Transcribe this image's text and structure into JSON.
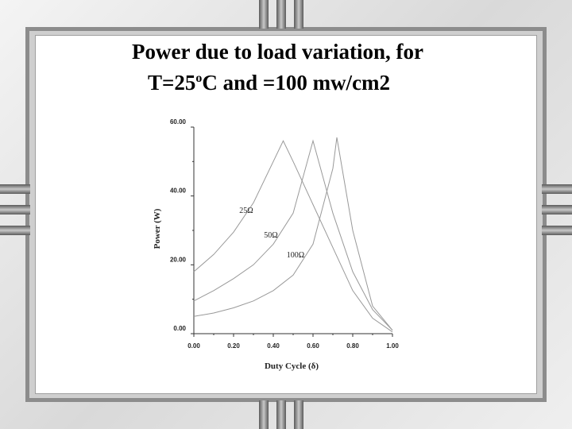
{
  "slide": {
    "title_line1": "Power due to load variation, for",
    "title_line2_pre": "T=25",
    "title_line2_sup": "o",
    "title_line2_post": "C and =100 mw/cm2"
  },
  "colors": {
    "frame": "#8c8c8c",
    "curve": "#999999",
    "axis": "#333333"
  },
  "chart_data": {
    "type": "line",
    "xlabel": "Duty Cycle (δ)",
    "ylabel": "Power (W)",
    "xlim": [
      0,
      1
    ],
    "ylim": [
      0,
      60
    ],
    "xticks": [
      "0.00",
      "0.20",
      "0.40",
      "0.60",
      "0.80",
      "1.00"
    ],
    "yticks": [
      "0.00",
      "20.00",
      "40.00",
      "60.00"
    ],
    "series": [
      {
        "name": "25Ω",
        "x": [
          0.0,
          0.1,
          0.2,
          0.3,
          0.4,
          0.45,
          0.5,
          0.6,
          0.7,
          0.8,
          0.9,
          1.0
        ],
        "y": [
          18.0,
          23.0,
          29.5,
          38.0,
          50.0,
          56.0,
          50.0,
          37.5,
          25.0,
          12.5,
          4.5,
          0.5
        ]
      },
      {
        "name": "50Ω",
        "x": [
          0.0,
          0.1,
          0.2,
          0.3,
          0.4,
          0.5,
          0.6,
          0.7,
          0.8,
          0.9,
          1.0
        ],
        "y": [
          9.5,
          12.5,
          16.0,
          20.0,
          26.0,
          35.0,
          56.0,
          35.0,
          18.0,
          7.0,
          1.0
        ]
      },
      {
        "name": "100Ω",
        "x": [
          0.0,
          0.1,
          0.2,
          0.3,
          0.4,
          0.5,
          0.6,
          0.7,
          0.72,
          0.8,
          0.9,
          1.0
        ],
        "y": [
          5.0,
          6.0,
          7.5,
          9.5,
          12.5,
          17.0,
          26.0,
          48.0,
          57.0,
          30.0,
          8.0,
          1.0
        ]
      }
    ],
    "annotations": [
      "25Ω",
      "50Ω",
      "100Ω"
    ],
    "grid": false
  }
}
